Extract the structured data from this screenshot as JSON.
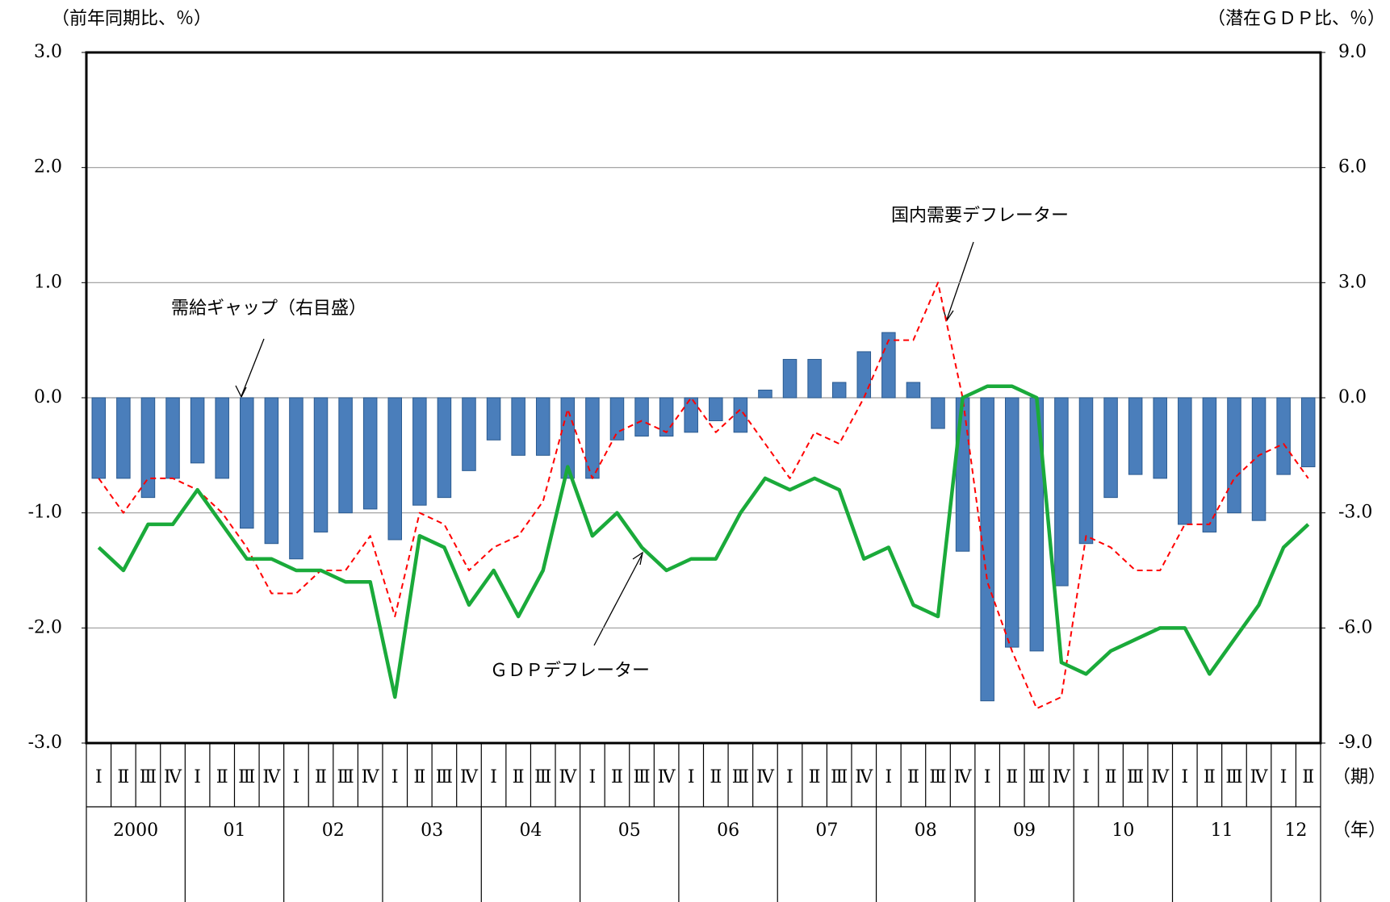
{
  "chart_data": {
    "type": "bar_line",
    "y_label": "（前年同期比、％）",
    "y2_label": "（潜在ＧＤＰ比、％）",
    "quarter_unit": "（期）",
    "year_unit": "（年）",
    "categories": [
      "Ⅰ",
      "Ⅱ",
      "Ⅲ",
      "Ⅳ",
      "Ⅰ",
      "Ⅱ",
      "Ⅲ",
      "Ⅳ",
      "Ⅰ",
      "Ⅱ",
      "Ⅲ",
      "Ⅳ",
      "Ⅰ",
      "Ⅱ",
      "Ⅲ",
      "Ⅳ",
      "Ⅰ",
      "Ⅱ",
      "Ⅲ",
      "Ⅳ",
      "Ⅰ",
      "Ⅱ",
      "Ⅲ",
      "Ⅳ",
      "Ⅰ",
      "Ⅱ",
      "Ⅲ",
      "Ⅳ",
      "Ⅰ",
      "Ⅱ",
      "Ⅲ",
      "Ⅳ",
      "Ⅰ",
      "Ⅱ",
      "Ⅲ",
      "Ⅳ",
      "Ⅰ",
      "Ⅱ",
      "Ⅲ",
      "Ⅳ",
      "Ⅰ",
      "Ⅱ",
      "Ⅲ",
      "Ⅳ",
      "Ⅰ",
      "Ⅱ",
      "Ⅲ",
      "Ⅳ",
      "Ⅰ",
      "Ⅱ"
    ],
    "years": [
      "2000",
      "01",
      "02",
      "03",
      "04",
      "05",
      "06",
      "07",
      "08",
      "09",
      "10",
      "11",
      "12"
    ],
    "ylim": [
      -3,
      3
    ],
    "yticks": [
      {
        "value": -3,
        "label": "-3.0"
      },
      {
        "value": -2,
        "label": "-2.0"
      },
      {
        "value": -1,
        "label": "-1.0"
      },
      {
        "value": 0,
        "label": "0.0"
      },
      {
        "value": 1,
        "label": "1.0"
      },
      {
        "value": 2,
        "label": "2.0"
      },
      {
        "value": 3,
        "label": "3.0"
      }
    ],
    "y2lim": [
      -9,
      9
    ],
    "y2ticks": [
      {
        "value": -9,
        "label": "-9.0"
      },
      {
        "value": -6,
        "label": "-6.0"
      },
      {
        "value": -3,
        "label": "-3.0"
      },
      {
        "value": 0,
        "label": "0.0"
      },
      {
        "value": 3,
        "label": "3.0"
      },
      {
        "value": 6,
        "label": "6.0"
      },
      {
        "value": 9,
        "label": "9.0"
      }
    ],
    "grid": true,
    "series": [
      {
        "name": "需給ギャップ（右目盛）",
        "type": "bar",
        "axis": "y2",
        "color": "#4a7ebb",
        "values": [
          -2.1,
          -2.1,
          -2.6,
          -2.1,
          -1.7,
          -2.1,
          -3.4,
          -3.8,
          -4.2,
          -3.5,
          -3.0,
          -2.9,
          -3.7,
          -2.8,
          -2.6,
          -1.9,
          -1.1,
          -1.5,
          -1.5,
          -2.1,
          -2.1,
          -1.1,
          -1.0,
          -1.0,
          -0.9,
          -0.6,
          -0.9,
          0.2,
          1.0,
          1.0,
          0.4,
          1.2,
          1.7,
          0.4,
          -0.8,
          -4.0,
          -7.9,
          -6.5,
          -6.6,
          -4.9,
          -3.8,
          -2.6,
          -2.0,
          -2.1,
          -3.3,
          -3.5,
          -3.0,
          -3.2,
          -2.0,
          -1.8
        ]
      },
      {
        "name": "国内需要デフレーター",
        "type": "line",
        "dashed": true,
        "color": "#ff0000",
        "values": [
          -0.7,
          -1.0,
          -0.7,
          -0.7,
          -0.8,
          -1.0,
          -1.3,
          -1.7,
          -1.7,
          -1.5,
          -1.5,
          -1.2,
          -1.9,
          -1.0,
          -1.1,
          -1.5,
          -1.3,
          -1.2,
          -0.9,
          -0.1,
          -0.7,
          -0.3,
          -0.2,
          -0.3,
          0.0,
          -0.3,
          -0.1,
          -0.4,
          -0.7,
          -0.3,
          -0.4,
          0.0,
          0.5,
          0.5,
          1.0,
          0.0,
          -1.6,
          -2.2,
          -2.7,
          -2.6,
          -1.2,
          -1.3,
          -1.5,
          -1.5,
          -1.1,
          -1.1,
          -0.7,
          -0.5,
          -0.4,
          -0.7
        ]
      },
      {
        "name": "ＧＤＰデフレーター",
        "type": "line",
        "dashed": false,
        "color": "#1aaa3a",
        "values": [
          -1.3,
          -1.5,
          -1.1,
          -1.1,
          -0.8,
          -1.1,
          -1.4,
          -1.4,
          -1.5,
          -1.5,
          -1.6,
          -1.6,
          -2.6,
          -1.2,
          -1.3,
          -1.8,
          -1.5,
          -1.9,
          -1.5,
          -0.6,
          -1.2,
          -1.0,
          -1.3,
          -1.5,
          -1.4,
          -1.4,
          -1.0,
          -0.7,
          -0.8,
          -0.7,
          -0.8,
          -1.4,
          -1.3,
          -1.8,
          -1.9,
          0.0,
          0.1,
          0.1,
          0.0,
          -2.3,
          -2.4,
          -2.2,
          -2.1,
          -2.0,
          -2.0,
          -2.4,
          -2.1,
          -1.8,
          -1.3,
          -1.1
        ]
      }
    ]
  }
}
